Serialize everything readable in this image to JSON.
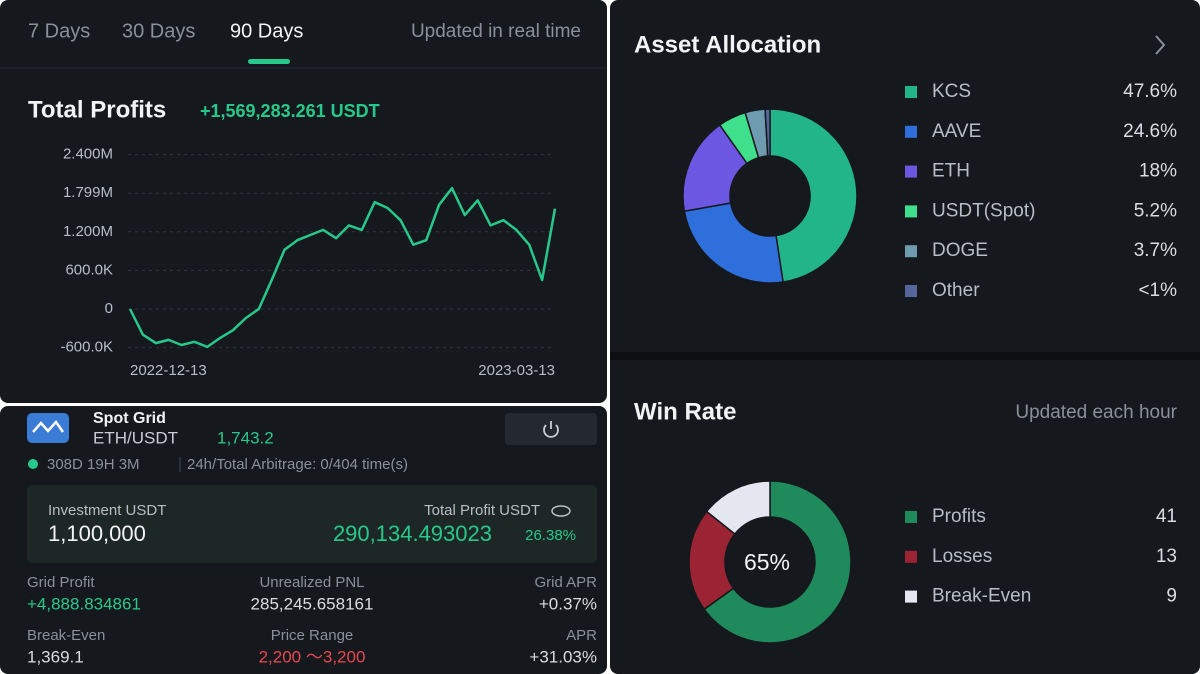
{
  "tabs": [
    "7 Days",
    "30 Days",
    "90 Days"
  ],
  "updated_note": "Updated in real time",
  "strategy": {
    "name": "Spot Grid",
    "pair": "ETH/USDT",
    "price": "1,743.2",
    "runtime": "308D 19H 3M",
    "arbitrage": "24h/Total Arbitrage: 0/404 time(s)",
    "investment_label": "Investment USDT",
    "investment": "1,100,000",
    "profit_label": "Total Profit USDT",
    "profit": "290,134.493023",
    "profit_rate": "26.38%",
    "stats": [
      {
        "label": "Grid Profit",
        "value": "+4,888.834861"
      },
      {
        "label": "Unrealized PNL",
        "value": "285,245.658161"
      },
      {
        "label": "Grid APR",
        "value": "+0.37%"
      },
      {
        "label": "Break-Even",
        "value": "1,369.1"
      },
      {
        "label": "Price Range",
        "value": "2,200 ～3,200"
      },
      {
        "label": "APR",
        "value": "+31.03%"
      }
    ]
  },
  "chart_data": [
    {
      "type": "line",
      "title": "Total Profits",
      "subtitle": "+1,569,283.261 USDT",
      "categories": [
        "2022-12-13",
        null,
        null,
        null,
        null,
        null,
        null,
        null,
        null,
        null,
        null,
        null,
        null,
        null,
        null,
        null,
        null,
        null,
        null,
        null,
        null,
        null,
        null,
        null,
        null,
        null,
        null,
        null,
        null,
        null,
        null,
        null,
        null,
        "2023-03-13"
      ],
      "values": [
        0,
        -400000,
        -530000,
        -480000,
        -560000,
        -510000,
        -590000,
        -450000,
        -330000,
        -140000,
        0,
        450000,
        920000,
        1070000,
        1150000,
        1230000,
        1100000,
        1300000,
        1230000,
        1660000,
        1570000,
        1380000,
        1000000,
        1070000,
        1620000,
        1880000,
        1460000,
        1690000,
        1300000,
        1380000,
        1230000,
        1000000,
        450000,
        1560000
      ],
      "color": "#27c98b",
      "ylim": [
        -650000,
        2400000
      ],
      "yticks": [
        {
          "value": -600000,
          "label": "-600.0K"
        },
        0,
        {
          "value": 600000,
          "label": "600.0K"
        },
        {
          "value": 1200000,
          "label": "1.200M"
        },
        {
          "value": 1799000,
          "label": "1.799M"
        },
        {
          "value": 2400000,
          "label": "2.400M"
        }
      ],
      "grid": true
    },
    {
      "type": "donut",
      "title": "Asset Allocation",
      "categories": [
        "KCS",
        "AAVE",
        "ETH",
        "USDT(Spot)",
        "DOGE",
        "Other"
      ],
      "values": [
        47.6,
        24.6,
        18,
        5.2,
        3.7,
        0.9
      ],
      "value_labels": [
        "47.6%",
        "24.6%",
        "18%",
        "5.2%",
        "3.7%",
        "<1%"
      ],
      "colors": [
        "#22b58a",
        "#2e6fdc",
        "#6b57e2",
        "#3fe08b",
        "#6f9bb1",
        "#55679a"
      ]
    },
    {
      "type": "donut",
      "title": "Win Rate",
      "subtitle": "Updated each hour",
      "center_label": "65%",
      "categories": [
        "Profits",
        "Losses",
        "Break-Even"
      ],
      "values": [
        41,
        13,
        9
      ],
      "colors": [
        "#1f8a5b",
        "#9a2434",
        "#e4e7f0"
      ]
    }
  ]
}
